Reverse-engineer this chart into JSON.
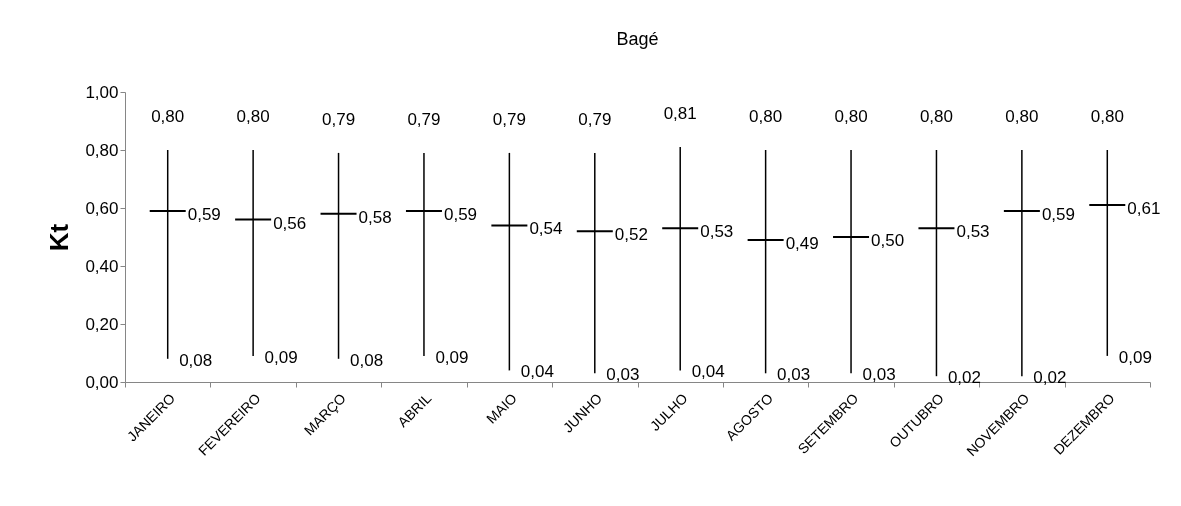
{
  "chart_data": {
    "type": "candlestick",
    "title": "Bagé",
    "ylabel": "Kt",
    "categories": [
      "JANEIRO",
      "FEVEREIRO",
      "MARÇO",
      "ABRIL",
      "MAIO",
      "JUNHO",
      "JULHO",
      "AGOSTO",
      "SETEMBRO",
      "OUTUBRO",
      "NOVEMBRO",
      "DEZEMBRO"
    ],
    "ohlc": [
      [
        0.59,
        0.8,
        0.08,
        0.59
      ],
      [
        0.56,
        0.8,
        0.09,
        0.56
      ],
      [
        0.58,
        0.79,
        0.08,
        0.58
      ],
      [
        0.59,
        0.79,
        0.09,
        0.59
      ],
      [
        0.54,
        0.79,
        0.04,
        0.54
      ],
      [
        0.52,
        0.79,
        0.03,
        0.52
      ],
      [
        0.53,
        0.81,
        0.04,
        0.53
      ],
      [
        0.49,
        0.8,
        0.03,
        0.49
      ],
      [
        0.5,
        0.8,
        0.03,
        0.5
      ],
      [
        0.53,
        0.8,
        0.02,
        0.53
      ],
      [
        0.59,
        0.8,
        0.02,
        0.59
      ],
      [
        0.61,
        0.8,
        0.09,
        0.61
      ]
    ],
    "ylim": [
      0,
      1
    ],
    "yticks": [
      {
        "value": 0,
        "label": "0,00"
      },
      {
        "value": 0.2,
        "label": "0,20"
      },
      {
        "value": 0.4,
        "label": "0,40"
      },
      {
        "value": 0.6,
        "label": "0,60"
      },
      {
        "value": 0.8,
        "label": "0,80"
      },
      {
        "value": 1,
        "label": "1,00"
      }
    ],
    "annotations": [
      {
        "text": "0,59",
        "x": "JANEIRO",
        "y": 0.59
      },
      {
        "text": "0,56",
        "x": "FEVEREIRO",
        "y": 0.56
      },
      {
        "text": "0,58",
        "x": "MARÇO",
        "y": 0.58
      },
      {
        "text": "0,59",
        "x": "ABRIL",
        "y": 0.59
      },
      {
        "text": "0,54",
        "x": "MAIO",
        "y": 0.54
      },
      {
        "text": "0,52",
        "x": "JUNHO",
        "y": 0.52
      },
      {
        "text": "0,53",
        "x": "JULHO",
        "y": 0.53
      },
      {
        "text": "0,49",
        "x": "AGOSTO",
        "y": 0.49
      },
      {
        "text": "0,50",
        "x": "SETEMBRO",
        "y": 0.5
      },
      {
        "text": "0,53",
        "x": "OUTUBRO",
        "y": 0.53
      },
      {
        "text": "0,59",
        "x": "NOVEMBRO",
        "y": 0.59
      },
      {
        "text": "0,61",
        "x": "DEZEMBRO",
        "y": 0.61
      },
      "0,80",
      "0,08",
      "0,80",
      "0,09",
      "0,79",
      "0,08",
      "0,79",
      "0,09",
      "0,79",
      "0,04",
      "0,79",
      "0,03",
      "0,81",
      "0,04",
      "0,80",
      "0,03",
      "0,80",
      "0,03",
      "0,80",
      "0,02",
      "0,80",
      "0,02",
      "0,80",
      "0,09"
    ],
    "grid": false
  }
}
